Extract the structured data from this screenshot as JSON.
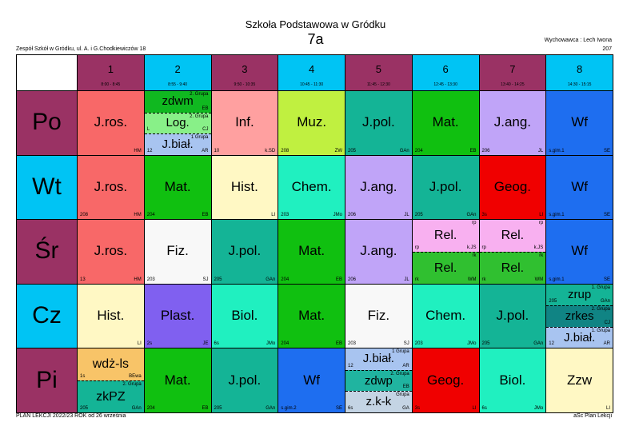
{
  "header": {
    "title": "Szkoła Podstawowa w Gródku",
    "class_name": "7a",
    "school": "Zespół Szkół w Gródku, ul. A. i G.Chodkiewiczów 18",
    "teacher": "Wychowawca : Lech Iwona",
    "room": "207"
  },
  "periods": [
    {
      "number": "1",
      "time": "8:00 - 8:45",
      "color": "#9a3264"
    },
    {
      "number": "2",
      "time": "8:55 - 9:40",
      "color": "#00c4f4"
    },
    {
      "number": "3",
      "time": "9:50 - 10:35",
      "color": "#9a3264"
    },
    {
      "number": "4",
      "time": "10:45 - 11:30",
      "color": "#00c4f4"
    },
    {
      "number": "5",
      "time": "11:45 - 12:30",
      "color": "#9a3264"
    },
    {
      "number": "6",
      "time": "12:45 - 13:30",
      "color": "#00c4f4"
    },
    {
      "number": "7",
      "time": "13:40 - 14:25",
      "color": "#9a3264"
    },
    {
      "number": "8",
      "time": "14:30 - 15:15",
      "color": "#00c4f4"
    }
  ],
  "days": [
    {
      "name": "Po",
      "color": "#9a3264",
      "lessons": [
        [
          {
            "subject": "J.ros.",
            "teacher": "HM",
            "color": "#f86868"
          }
        ],
        [
          {
            "subject": "zdwm",
            "group": "2. Grupa",
            "teacher": "EB",
            "color": "#10b820"
          },
          {
            "subject": "Log.",
            "group": "2. Grupa",
            "room": "L",
            "teacher": "CJ",
            "color": "#88f088"
          },
          {
            "subject": "J.biał.",
            "group": "1 Grupa",
            "room": "12",
            "teacher": "AR",
            "color": "#a8c4f0"
          }
        ],
        [
          {
            "subject": "Inf.",
            "room": "10",
            "teacher": "k.SD",
            "color": "#ffa0a0"
          }
        ],
        [
          {
            "subject": "Muz.",
            "room": "208",
            "teacher": "ZW",
            "color": "#c0f040"
          }
        ],
        [
          {
            "subject": "J.pol.",
            "room": "205",
            "teacher": "GAn",
            "color": "#14b496"
          }
        ],
        [
          {
            "subject": "Mat.",
            "room": "204",
            "teacher": "EB",
            "color": "#10c010"
          }
        ],
        [
          {
            "subject": "J.ang.",
            "room": "206",
            "teacher": "JL",
            "color": "#c0a4f8"
          }
        ],
        [
          {
            "subject": "Wf",
            "room": "s.gim.1",
            "teacher": "SE",
            "color": "#1e6ef0"
          }
        ]
      ]
    },
    {
      "name": "Wt",
      "color": "#00c4f4",
      "lessons": [
        [
          {
            "subject": "J.ros.",
            "room": "208",
            "teacher": "HM",
            "color": "#f86868"
          }
        ],
        [
          {
            "subject": "Mat.",
            "room": "204",
            "teacher": "EB",
            "color": "#10c010"
          }
        ],
        [
          {
            "subject": "Hist.",
            "teacher": "LI",
            "color": "#fff8c4"
          }
        ],
        [
          {
            "subject": "Chem.",
            "room": "203",
            "teacher": "JMo",
            "color": "#20f0c0"
          }
        ],
        [
          {
            "subject": "J.ang.",
            "room": "206",
            "teacher": "JL",
            "color": "#c0a4f8"
          }
        ],
        [
          {
            "subject": "J.pol.",
            "room": "205",
            "teacher": "GAn",
            "color": "#14b496"
          }
        ],
        [
          {
            "subject": "Geog.",
            "room": "3s",
            "teacher": "LI",
            "color": "#f00000"
          }
        ],
        [
          {
            "subject": "Wf",
            "room": "s.gim.1",
            "teacher": "SE",
            "color": "#1e6ef0"
          }
        ]
      ]
    },
    {
      "name": "Śr",
      "color": "#9a3264",
      "lessons": [
        [
          {
            "subject": "J.ros.",
            "room": "13",
            "teacher": "HM",
            "color": "#f86868"
          }
        ],
        [
          {
            "subject": "Fiz.",
            "room": "203",
            "teacher": "SJ",
            "color": "#f8f8f8"
          }
        ],
        [
          {
            "subject": "J.pol.",
            "room": "205",
            "teacher": "GAn",
            "color": "#14b496"
          }
        ],
        [
          {
            "subject": "Mat.",
            "room": "204",
            "teacher": "EB",
            "color": "#10c010"
          }
        ],
        [
          {
            "subject": "J.ang.",
            "room": "206",
            "teacher": "JL",
            "color": "#c0a4f8"
          }
        ],
        [
          {
            "subject": "Rel.",
            "group": "rp",
            "room": "rp",
            "teacher": "k.JS",
            "color": "#f8b0f0"
          },
          {
            "subject": "Rel.",
            "group": "rk",
            "room": "rk",
            "teacher": "WM",
            "color": "#30c030"
          }
        ],
        [
          {
            "subject": "Rel.",
            "group": "rp",
            "room": "rp",
            "teacher": "k.JS",
            "color": "#f8b0f0"
          },
          {
            "subject": "Rel.",
            "group": "rk",
            "room": "rk",
            "teacher": "WM",
            "color": "#30c030"
          }
        ],
        [
          {
            "subject": "Wf",
            "room": "s.gim.1",
            "teacher": "SE",
            "color": "#1e6ef0"
          }
        ]
      ]
    },
    {
      "name": "Cz",
      "color": "#00c4f4",
      "lessons": [
        [
          {
            "subject": "Hist.",
            "teacher": "LI",
            "color": "#fff8c4"
          }
        ],
        [
          {
            "subject": "Plast.",
            "room": "2s",
            "teacher": "JE",
            "color": "#8060f0"
          }
        ],
        [
          {
            "subject": "Biol.",
            "room": "6s",
            "teacher": "JMo",
            "color": "#20f0c0"
          }
        ],
        [
          {
            "subject": "Mat.",
            "room": "204",
            "teacher": "EB",
            "color": "#10c010"
          }
        ],
        [
          {
            "subject": "Fiz.",
            "room": "203",
            "teacher": "SJ",
            "color": "#f8f8f8"
          }
        ],
        [
          {
            "subject": "Chem.",
            "room": "203",
            "teacher": "JMo",
            "color": "#20f0c0"
          }
        ],
        [
          {
            "subject": "J.pol.",
            "room": "205",
            "teacher": "GAn",
            "color": "#14b496"
          }
        ],
        [
          {
            "subject": "zrup",
            "group": "1. Grupa",
            "room": "205",
            "teacher": "GAn",
            "color": "#14b496"
          },
          {
            "subject": "zrkes",
            "group": "2. Grupa",
            "teacher": "CJ",
            "color": "#108484"
          },
          {
            "subject": "J.biał.",
            "group": "1. Grupa",
            "room": "12",
            "teacher": "AR",
            "color": "#a8c4f0"
          }
        ]
      ]
    },
    {
      "name": "Pi",
      "color": "#9a3264",
      "lessons": [
        [
          {
            "subject": "wdż-ls",
            "room": "1s",
            "teacher": "BEwa",
            "color": "#f8c468"
          },
          {
            "subject": "zkPZ",
            "group": "2. Grupa",
            "room": "205",
            "teacher": "GAn",
            "color": "#14b496"
          }
        ],
        [
          {
            "subject": "Mat.",
            "room": "204",
            "teacher": "EB",
            "color": "#10c010"
          }
        ],
        [
          {
            "subject": "J.pol.",
            "room": "205",
            "teacher": "GAn",
            "color": "#14b496"
          }
        ],
        [
          {
            "subject": "Wf",
            "room": "s.gim.2",
            "teacher": "SE",
            "color": "#1e6ef0"
          }
        ],
        [
          {
            "subject": "J.biał.",
            "group": "1 Grupa",
            "room": "12",
            "teacher": "AR",
            "color": "#a8c4f0"
          },
          {
            "subject": "zdwp",
            "group": "2. Grupa",
            "teacher": "EB",
            "color": "#20b4a0"
          },
          {
            "subject": "z.k-k",
            "group": "Grupa",
            "room": "6s",
            "teacher": "GA",
            "color": "#c4d4e4"
          }
        ],
        [
          {
            "subject": "Geog.",
            "room": "3s",
            "teacher": "LI",
            "color": "#f00000"
          }
        ],
        [
          {
            "subject": "Biol.",
            "room": "6s",
            "teacher": "JMo",
            "color": "#20f0c0"
          }
        ],
        [
          {
            "subject": "Zzw",
            "teacher": "LI",
            "color": "#fff8c4"
          }
        ]
      ]
    }
  ],
  "footer": {
    "left": "PLAN LEKCJI 2022/23 ROK od 26 września",
    "right": "aSc Plan Lekcji"
  }
}
